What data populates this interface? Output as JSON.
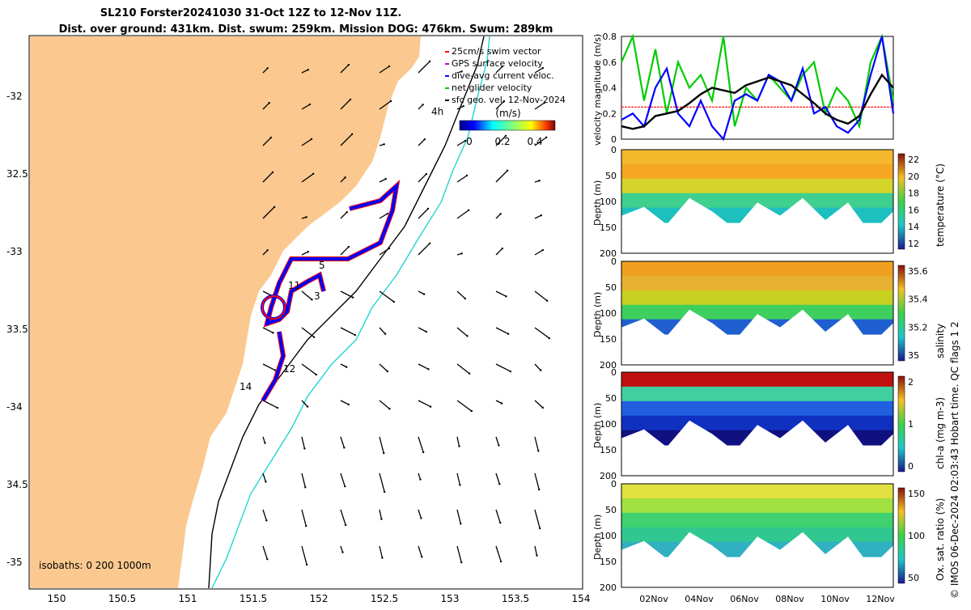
{
  "title": {
    "line1": "SL210 Forster20241030 31-Oct 12Z to 12-Nov 11Z.",
    "line2": "Dist. over ground: 431km. Dist. swum: 259km. Mission DOG: 476km. Swum: 289km"
  },
  "map": {
    "lon_ticks": [
      "150",
      "150.5",
      "151",
      "151.5",
      "152",
      "152.5",
      "153",
      "153.5",
      "154"
    ],
    "lat_ticks": [
      "-32",
      "32.5",
      "-33",
      "33.5",
      "-34",
      "34.5",
      "-35"
    ],
    "legend": [
      {
        "label": "25cm/s swim vector",
        "color": "#ff0000"
      },
      {
        "label": "GPS surface velocity",
        "color": "#cc00cc"
      },
      {
        "label": "dive-avg current veloc.",
        "color": "#0000ff"
      },
      {
        "label": "net glider velocity",
        "color": "#00cc00"
      },
      {
        "label": "sfc geo. vel. 12-Nov-2024",
        "color": "#000000"
      }
    ],
    "colorbar": {
      "title": "(m/s)",
      "ticks": [
        "0",
        "0.2",
        "0.4"
      ]
    },
    "isobaths_label": "isobaths: 0   200  1000m",
    "annotations": [
      "4h",
      "5",
      "11",
      "3",
      "12",
      "14"
    ],
    "land_color": "#fbc98f"
  },
  "chart_data": [
    {
      "type": "line",
      "ylabel": "velocity magnitude (m/s)",
      "ylim": [
        0,
        0.8
      ],
      "yticks": [
        "0",
        "0.2",
        "0.4",
        "0.6",
        "0.8"
      ],
      "series": [
        {
          "name": "swim vector (25cm/s)",
          "color": "#ff0000",
          "values": [
            0.25,
            0.25,
            0.25,
            0.25,
            0.25,
            0.25,
            0.25,
            0.25,
            0.25,
            0.25,
            0.25,
            0.25,
            0.25,
            0.25,
            0.25,
            0.25,
            0.25,
            0.25,
            0.25,
            0.25,
            0.25,
            0.25,
            0.25,
            0.25,
            0.25
          ]
        },
        {
          "name": "net glider velocity",
          "color": "#00cc00",
          "values": [
            0.6,
            0.8,
            0.3,
            0.7,
            0.2,
            0.6,
            0.4,
            0.5,
            0.3,
            0.8,
            0.1,
            0.4,
            0.3,
            0.5,
            0.4,
            0.3,
            0.5,
            0.6,
            0.2,
            0.4,
            0.3,
            0.1,
            0.6,
            0.8,
            0.3
          ]
        },
        {
          "name": "dive-avg current",
          "color": "#0000ff",
          "values": [
            0.15,
            0.2,
            0.1,
            0.4,
            0.55,
            0.2,
            0.1,
            0.3,
            0.1,
            0.0,
            0.3,
            0.35,
            0.3,
            0.5,
            0.45,
            0.3,
            0.55,
            0.2,
            0.25,
            0.1,
            0.05,
            0.15,
            0.5,
            0.8,
            0.2
          ]
        },
        {
          "name": "surface",
          "color": "#000000",
          "values": [
            0.1,
            0.08,
            0.1,
            0.18,
            0.2,
            0.22,
            0.28,
            0.35,
            0.4,
            0.38,
            0.36,
            0.42,
            0.45,
            0.48,
            0.45,
            0.42,
            0.35,
            0.28,
            0.2,
            0.15,
            0.12,
            0.18,
            0.35,
            0.5,
            0.4
          ]
        }
      ]
    },
    {
      "type": "heatmap",
      "ylabel": "Depth (m)",
      "clabel": "temperature (°C)",
      "cticks": [
        "22",
        "20",
        "18",
        "16",
        "14",
        "12"
      ],
      "yticks": [
        "0",
        "50",
        "100",
        "150",
        "200"
      ],
      "colormap": "parula-like"
    },
    {
      "type": "heatmap",
      "ylabel": "Depth (m)",
      "clabel": "salinity",
      "cticks": [
        "35.6",
        "35.4",
        "35.2",
        "35"
      ],
      "yticks": [
        "0",
        "50",
        "100",
        "150",
        "200"
      ]
    },
    {
      "type": "heatmap",
      "ylabel": "Depth (m)",
      "clabel": "chl-a (mg m-3)",
      "cticks": [
        "2",
        "1",
        "0"
      ],
      "yticks": [
        "0",
        "50",
        "100",
        "150",
        "200"
      ]
    },
    {
      "type": "heatmap",
      "ylabel": "Depth (m)",
      "clabel": "Ox. sat. ratio (%)",
      "cticks": [
        "150",
        "100",
        "50"
      ],
      "yticks": [
        "0",
        "50",
        "100",
        "150",
        "200"
      ],
      "xticks": [
        "02Nov",
        "04Nov",
        "06Nov",
        "08Nov",
        "10Nov",
        "12Nov"
      ]
    }
  ],
  "side_note": "© IMOS 06-Dec-2024 02:03:43 Hobart time. QC flags 1  2"
}
